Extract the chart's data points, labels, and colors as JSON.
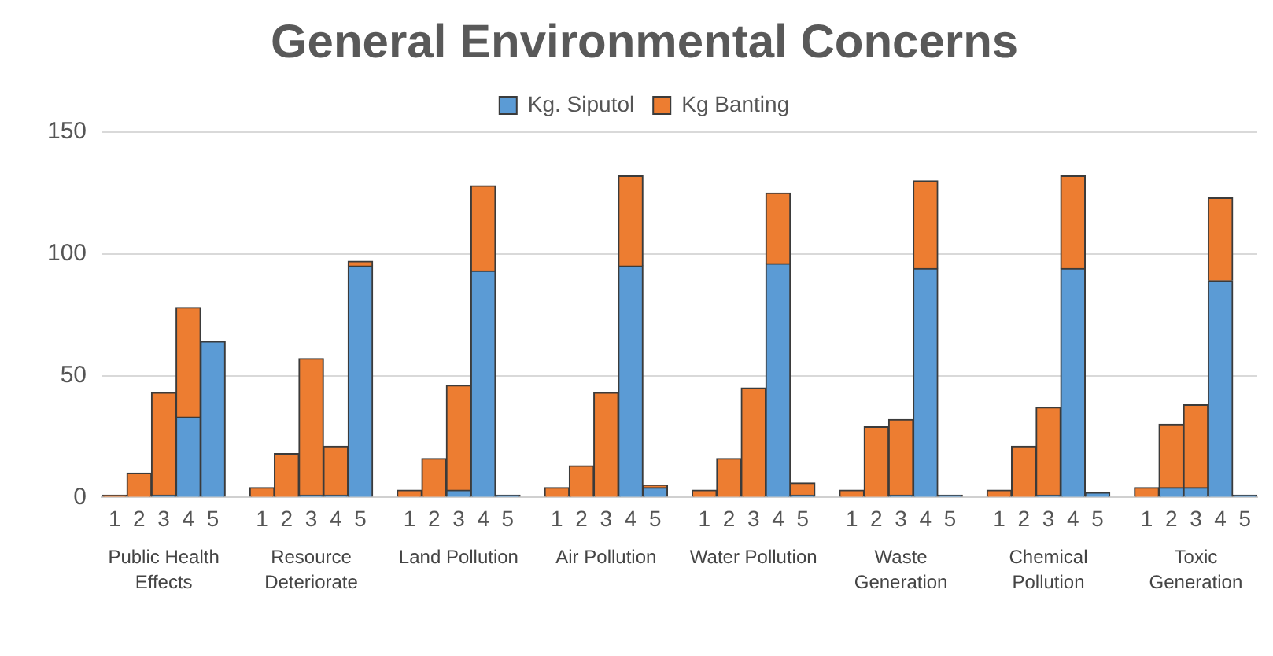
{
  "chart_data": {
    "type": "bar",
    "title": "General Environmental Concerns",
    "stacked": true,
    "categories": [
      "1",
      "2",
      "3",
      "4",
      "5",
      null,
      "1",
      "2",
      "3",
      "4",
      "5",
      null,
      "1",
      "2",
      "3",
      "4",
      "5",
      null,
      "1",
      "2",
      "3",
      "4",
      "5",
      null,
      "1",
      "2",
      "3",
      "4",
      "5",
      null,
      "1",
      "2",
      "3",
      "4",
      "5",
      null,
      "1",
      "2",
      "3",
      "4",
      "5",
      null,
      "1",
      "2",
      "3",
      "4",
      "5"
    ],
    "series": [
      {
        "name": "Kg. Siputol",
        "color": "#5b9bd5",
        "values": [
          0,
          0,
          1,
          33,
          64,
          null,
          0,
          0,
          1,
          1,
          95,
          null,
          0,
          0,
          3,
          93,
          1,
          null,
          0,
          0,
          0,
          95,
          4,
          null,
          0,
          0,
          0,
          96,
          1,
          null,
          0,
          0,
          1,
          94,
          1,
          null,
          0,
          0,
          1,
          94,
          2,
          null,
          0,
          4,
          4,
          89,
          1
        ]
      },
      {
        "name": "Kg Banting",
        "color": "#ed7d31",
        "values": [
          1,
          10,
          42,
          45,
          0,
          null,
          4,
          18,
          56,
          20,
          2,
          null,
          3,
          16,
          43,
          35,
          0,
          null,
          4,
          13,
          43,
          37,
          1,
          null,
          3,
          16,
          45,
          29,
          5,
          null,
          3,
          29,
          31,
          36,
          0,
          null,
          3,
          21,
          36,
          38,
          0,
          null,
          4,
          26,
          34,
          34,
          0
        ]
      }
    ],
    "ylim": [
      0,
      150
    ],
    "yticks": [
      0,
      50,
      100,
      150
    ],
    "grid": "y",
    "legend": "top",
    "annotations": [
      "Public Health Effects",
      "Resource Deteriorate",
      "Land Pollution",
      "Air Pollution",
      "Water Pollution",
      "Waste Generation",
      "Chemical Pollution",
      "Toxic Generation"
    ]
  }
}
